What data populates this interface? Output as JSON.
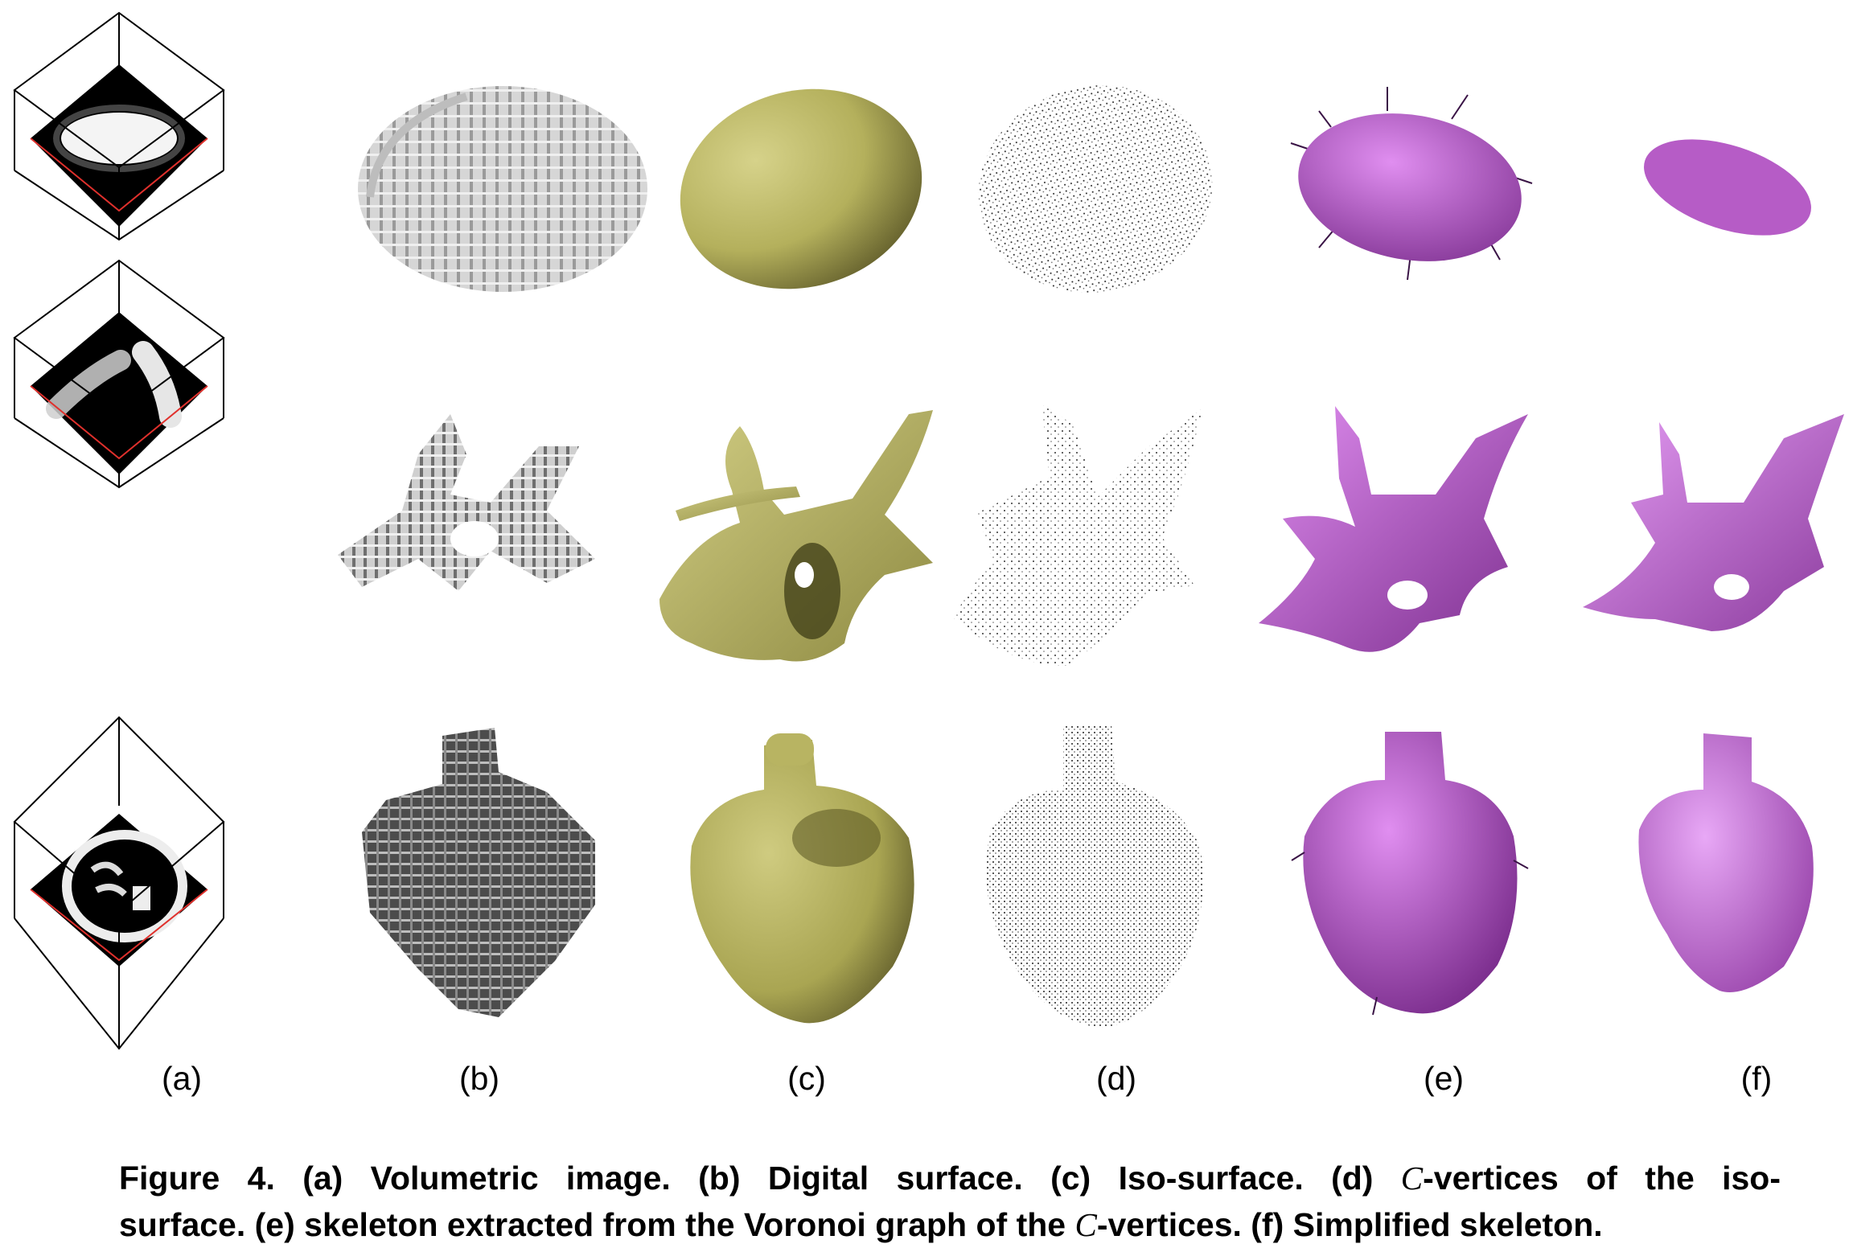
{
  "figure": {
    "column_labels": [
      "(a)",
      "(b)",
      "(c)",
      "(d)",
      "(e)",
      "(f)"
    ],
    "rows": [
      "ellipsoid",
      "branching-structure",
      "heart"
    ],
    "colors": {
      "digital_surface": "#c8c8c8",
      "digital_surface_dark": "#5c5c5c",
      "iso_surface": "#c4c070",
      "iso_surface_shadow": "#6e6a30",
      "skeleton": "#c86ad8",
      "skeleton_shadow": "#5a2466",
      "volume_slice": "#000000",
      "cube_edge_red": "#e0302c"
    }
  },
  "caption": {
    "line1": {
      "p1": "Figure 4. (a) Volumetric image.  (b) Digital surface.  (c) Iso-surface.  (d) ",
      "m1": "C",
      "p2": "-vertices of the iso-"
    },
    "line2": {
      "p1": "surface.  (e) skeleton extracted from the Voronoi graph of the ",
      "m1": "C",
      "p2": "-vertices.  (f) Simplified skeleton."
    }
  }
}
